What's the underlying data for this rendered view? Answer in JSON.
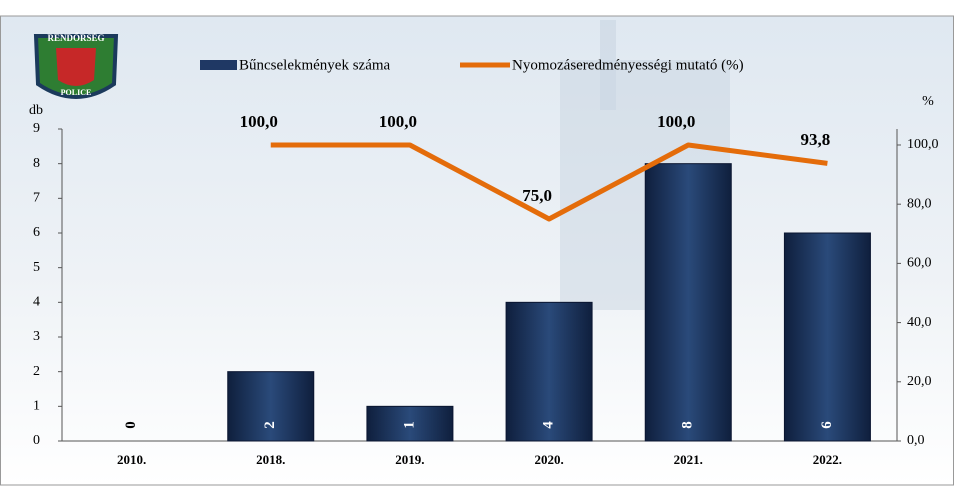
{
  "badge": {
    "top": "RENDŐRSÉG",
    "bottom": "POLICE"
  },
  "chart_data": {
    "type": "bar-line",
    "categories": [
      "2010.",
      "2018.",
      "2019.",
      "2020.",
      "2021.",
      "2022."
    ],
    "series": [
      {
        "name": "Bűncselekmények száma",
        "color": "#1f3864",
        "type": "bar",
        "values": [
          0,
          2,
          1,
          4,
          8,
          6
        ]
      },
      {
        "name": "Nyomozáseredményességi mutató (%)",
        "color": "#e46c0a",
        "type": "line",
        "axis": "y2",
        "values": [
          null,
          100,
          100,
          75,
          100,
          93.8
        ],
        "value_labels": [
          null,
          "100,0",
          "100,0",
          "75,0",
          "100,0",
          "93,8"
        ]
      }
    ],
    "ylabel": "db",
    "y2label": "%",
    "ylim": [
      0,
      9
    ],
    "yticks": [
      0,
      1,
      2,
      3,
      4,
      5,
      6,
      7,
      8,
      9
    ],
    "y2lim": [
      0,
      105.4
    ],
    "y2ticks": [
      {
        "value": 0,
        "label": "0,0"
      },
      {
        "value": 20,
        "label": "20,0"
      },
      {
        "value": 40,
        "label": "40,0"
      },
      {
        "value": 60,
        "label": "60,0"
      },
      {
        "value": 80,
        "label": "80,0"
      },
      {
        "value": 100,
        "label": "100,0"
      }
    ],
    "legend": "top",
    "grid": false
  }
}
